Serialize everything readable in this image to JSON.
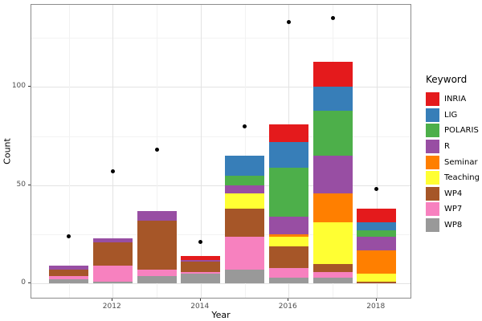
{
  "figure": {
    "xlabel": "Year",
    "ylabel": "Count",
    "legend_title": "Keyword"
  },
  "chart_data": {
    "type": "bar",
    "subtype": "stacked-bars-with-scatter-points",
    "title": "",
    "xlabel": "Year",
    "ylabel": "Count",
    "legend_title": "Keyword",
    "legend_position": "right",
    "grid": true,
    "x": [
      2011,
      2012,
      2013,
      2014,
      2015,
      2016,
      2017,
      2018
    ],
    "x_tick_labels": [
      "2012",
      "2014",
      "2016",
      "2018"
    ],
    "x_major_ticks": [
      2012,
      2014,
      2016,
      2018
    ],
    "x_minor_ticks": [
      2011,
      2013,
      2015,
      2017
    ],
    "y_ticks": [
      0,
      50,
      100
    ],
    "y_tick_labels": [
      "0",
      "50",
      "100"
    ],
    "y_minor_ticks": [
      25,
      75,
      125
    ],
    "ylim": [
      0,
      142
    ],
    "stack_order_bottom_to_top": [
      "WP8",
      "WP7",
      "WP4",
      "Teaching",
      "Seminar",
      "R",
      "POLARIS",
      "LIG",
      "INRIA"
    ],
    "series": [
      {
        "name": "INRIA",
        "color": "#E41A1C",
        "values": [
          0,
          0,
          0,
          2,
          0,
          9,
          13,
          7
        ]
      },
      {
        "name": "LIG",
        "color": "#377EB8",
        "values": [
          0,
          0,
          0,
          0,
          10,
          13,
          12,
          4
        ]
      },
      {
        "name": "POLARIS",
        "color": "#4DAF4A",
        "values": [
          0,
          0,
          0,
          0,
          5,
          25,
          23,
          3
        ]
      },
      {
        "name": "R",
        "color": "#984EA3",
        "values": [
          2,
          2,
          5,
          1,
          4,
          9,
          19,
          7
        ]
      },
      {
        "name": "Seminar",
        "color": "#FF7F00",
        "values": [
          0,
          0,
          0,
          0,
          0,
          1,
          15,
          12
        ]
      },
      {
        "name": "Teaching",
        "color": "#FFFF33",
        "values": [
          0,
          0,
          0,
          0,
          8,
          5,
          21,
          4
        ]
      },
      {
        "name": "WP4",
        "color": "#A65628",
        "values": [
          3,
          12,
          25,
          5,
          14,
          11,
          4,
          1
        ]
      },
      {
        "name": "WP7",
        "color": "#F781BF",
        "values": [
          2,
          8,
          3,
          1,
          17,
          5,
          3,
          0
        ]
      },
      {
        "name": "WP8",
        "color": "#999999",
        "values": [
          2,
          1,
          4,
          5,
          7,
          3,
          3,
          0
        ]
      }
    ],
    "points": {
      "name": "yearly-total-points",
      "color": "#000000",
      "values": [
        24,
        57,
        68,
        21,
        80,
        133,
        135,
        48
      ]
    },
    "bar_totals": [
      9,
      23,
      37,
      14,
      65,
      81,
      113,
      38
    ]
  }
}
